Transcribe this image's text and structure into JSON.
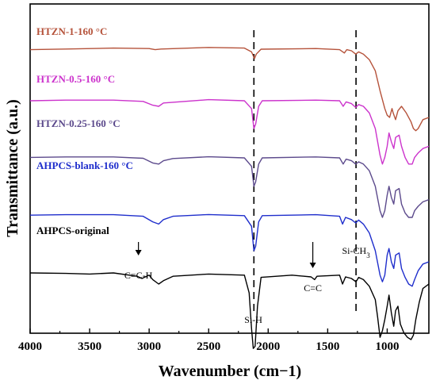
{
  "chart_data": {
    "type": "line",
    "xlabel": "Wavenumber (cm−1)",
    "ylabel": "Transmittance (a.u.)",
    "xlim": [
      4000,
      650
    ],
    "x_reversed": true,
    "x_ticks": [
      4000,
      3500,
      3000,
      2500,
      2000,
      1500,
      1000
    ],
    "grid": false,
    "legend_placement": "inline-left",
    "series": [
      {
        "name": "HTZN-1-160 °C",
        "color": "#b5523a",
        "points": [
          [
            4000,
            0.955
          ],
          [
            3700,
            0.958
          ],
          [
            3300,
            0.962
          ],
          [
            3000,
            0.96
          ],
          [
            2950,
            0.955
          ],
          [
            2900,
            0.958
          ],
          [
            2500,
            0.965
          ],
          [
            2200,
            0.962
          ],
          [
            2140,
            0.945
          ],
          [
            2115,
            0.915
          ],
          [
            2100,
            0.935
          ],
          [
            2060,
            0.957
          ],
          [
            1600,
            0.96
          ],
          [
            1400,
            0.955
          ],
          [
            1360,
            0.94
          ],
          [
            1340,
            0.955
          ],
          [
            1300,
            0.95
          ],
          [
            1265,
            0.935
          ],
          [
            1240,
            0.945
          ],
          [
            1200,
            0.935
          ],
          [
            1150,
            0.91
          ],
          [
            1100,
            0.86
          ],
          [
            1060,
            0.77
          ],
          [
            1020,
            0.69
          ],
          [
            1000,
            0.66
          ],
          [
            980,
            0.65
          ],
          [
            960,
            0.69
          ],
          [
            950,
            0.67
          ],
          [
            930,
            0.64
          ],
          [
            910,
            0.68
          ],
          [
            880,
            0.7
          ],
          [
            840,
            0.67
          ],
          [
            800,
            0.63
          ],
          [
            780,
            0.6
          ],
          [
            760,
            0.59
          ],
          [
            740,
            0.6
          ],
          [
            700,
            0.64
          ],
          [
            650,
            0.65
          ]
        ]
      },
      {
        "name": "HTZN-0.5-160 °C",
        "color": "#cc33cc",
        "points": [
          [
            4000,
            0.725
          ],
          [
            3700,
            0.728
          ],
          [
            3300,
            0.728
          ],
          [
            3050,
            0.722
          ],
          [
            2970,
            0.705
          ],
          [
            2920,
            0.7
          ],
          [
            2880,
            0.715
          ],
          [
            2500,
            0.73
          ],
          [
            2200,
            0.725
          ],
          [
            2140,
            0.69
          ],
          [
            2120,
            0.6
          ],
          [
            2105,
            0.62
          ],
          [
            2080,
            0.7
          ],
          [
            2050,
            0.725
          ],
          [
            1600,
            0.728
          ],
          [
            1400,
            0.725
          ],
          [
            1370,
            0.7
          ],
          [
            1345,
            0.72
          ],
          [
            1300,
            0.712
          ],
          [
            1265,
            0.695
          ],
          [
            1240,
            0.708
          ],
          [
            1200,
            0.7
          ],
          [
            1150,
            0.67
          ],
          [
            1100,
            0.6
          ],
          [
            1060,
            0.48
          ],
          [
            1040,
            0.44
          ],
          [
            1020,
            0.47
          ],
          [
            1000,
            0.52
          ],
          [
            985,
            0.58
          ],
          [
            965,
            0.54
          ],
          [
            945,
            0.51
          ],
          [
            930,
            0.56
          ],
          [
            900,
            0.57
          ],
          [
            880,
            0.52
          ],
          [
            850,
            0.47
          ],
          [
            820,
            0.44
          ],
          [
            790,
            0.44
          ],
          [
            770,
            0.47
          ],
          [
            740,
            0.49
          ],
          [
            700,
            0.51
          ],
          [
            650,
            0.52
          ]
        ]
      },
      {
        "name": "HTZN-0.25-160 °C",
        "color": "#5c4a8c",
        "points": [
          [
            4000,
            0.47
          ],
          [
            3700,
            0.472
          ],
          [
            3300,
            0.472
          ],
          [
            3050,
            0.466
          ],
          [
            2970,
            0.445
          ],
          [
            2920,
            0.44
          ],
          [
            2880,
            0.455
          ],
          [
            2800,
            0.465
          ],
          [
            2500,
            0.473
          ],
          [
            2200,
            0.468
          ],
          [
            2140,
            0.43
          ],
          [
            2120,
            0.34
          ],
          [
            2105,
            0.36
          ],
          [
            2080,
            0.44
          ],
          [
            2050,
            0.468
          ],
          [
            1600,
            0.472
          ],
          [
            1400,
            0.468
          ],
          [
            1370,
            0.44
          ],
          [
            1345,
            0.462
          ],
          [
            1300,
            0.455
          ],
          [
            1265,
            0.44
          ],
          [
            1240,
            0.45
          ],
          [
            1200,
            0.44
          ],
          [
            1150,
            0.41
          ],
          [
            1100,
            0.34
          ],
          [
            1060,
            0.23
          ],
          [
            1040,
            0.2
          ],
          [
            1020,
            0.23
          ],
          [
            1000,
            0.3
          ],
          [
            985,
            0.34
          ],
          [
            965,
            0.29
          ],
          [
            945,
            0.26
          ],
          [
            930,
            0.32
          ],
          [
            900,
            0.33
          ],
          [
            880,
            0.26
          ],
          [
            850,
            0.22
          ],
          [
            820,
            0.2
          ],
          [
            790,
            0.2
          ],
          [
            770,
            0.23
          ],
          [
            740,
            0.25
          ],
          [
            700,
            0.27
          ],
          [
            650,
            0.28
          ]
        ]
      },
      {
        "name": "AHPCS-blank-160 °C",
        "color": "#1f2ecc",
        "points": [
          [
            4000,
            0.21
          ],
          [
            3700,
            0.212
          ],
          [
            3300,
            0.212
          ],
          [
            3050,
            0.205
          ],
          [
            2970,
            0.18
          ],
          [
            2920,
            0.17
          ],
          [
            2880,
            0.19
          ],
          [
            2800,
            0.205
          ],
          [
            2500,
            0.213
          ],
          [
            2200,
            0.208
          ],
          [
            2140,
            0.16
          ],
          [
            2120,
            0.05
          ],
          [
            2105,
            0.07
          ],
          [
            2080,
            0.18
          ],
          [
            2050,
            0.208
          ],
          [
            1600,
            0.212
          ],
          [
            1400,
            0.205
          ],
          [
            1375,
            0.17
          ],
          [
            1350,
            0.2
          ],
          [
            1300,
            0.19
          ],
          [
            1265,
            0.175
          ],
          [
            1240,
            0.188
          ],
          [
            1200,
            0.17
          ],
          [
            1150,
            0.13
          ],
          [
            1100,
            0.05
          ],
          [
            1060,
            -0.06
          ],
          [
            1040,
            -0.09
          ],
          [
            1020,
            -0.06
          ],
          [
            1000,
            0.03
          ],
          [
            985,
            0.06
          ],
          [
            965,
            0.0
          ],
          [
            945,
            -0.03
          ],
          [
            930,
            0.03
          ],
          [
            900,
            0.04
          ],
          [
            880,
            -0.03
          ],
          [
            850,
            -0.07
          ],
          [
            820,
            -0.1
          ],
          [
            790,
            -0.11
          ],
          [
            770,
            -0.08
          ],
          [
            740,
            -0.04
          ],
          [
            700,
            -0.01
          ],
          [
            650,
            0.0
          ]
        ]
      },
      {
        "name": "AHPCS-original",
        "color": "#000000",
        "points": [
          [
            4000,
            -0.05
          ],
          [
            3700,
            -0.052
          ],
          [
            3500,
            -0.055
          ],
          [
            3300,
            -0.05
          ],
          [
            3100,
            -0.065
          ],
          [
            3060,
            -0.075
          ],
          [
            3000,
            -0.06
          ],
          [
            2970,
            -0.08
          ],
          [
            2920,
            -0.1
          ],
          [
            2880,
            -0.085
          ],
          [
            2800,
            -0.065
          ],
          [
            2500,
            -0.055
          ],
          [
            2200,
            -0.06
          ],
          [
            2160,
            -0.14
          ],
          [
            2140,
            -0.3
          ],
          [
            2125,
            -0.39
          ],
          [
            2110,
            -0.38
          ],
          [
            2090,
            -0.2
          ],
          [
            2060,
            -0.07
          ],
          [
            1800,
            -0.06
          ],
          [
            1640,
            -0.068
          ],
          [
            1610,
            -0.08
          ],
          [
            1590,
            -0.065
          ],
          [
            1400,
            -0.06
          ],
          [
            1375,
            -0.1
          ],
          [
            1350,
            -0.068
          ],
          [
            1300,
            -0.075
          ],
          [
            1262,
            -0.09
          ],
          [
            1240,
            -0.07
          ],
          [
            1200,
            -0.08
          ],
          [
            1150,
            -0.11
          ],
          [
            1100,
            -0.17
          ],
          [
            1080,
            -0.25
          ],
          [
            1060,
            -0.34
          ],
          [
            1040,
            -0.31
          ],
          [
            1020,
            -0.26
          ],
          [
            1000,
            -0.2
          ],
          [
            985,
            -0.15
          ],
          [
            965,
            -0.23
          ],
          [
            945,
            -0.29
          ],
          [
            930,
            -0.22
          ],
          [
            910,
            -0.2
          ],
          [
            890,
            -0.28
          ],
          [
            860,
            -0.32
          ],
          [
            830,
            -0.34
          ],
          [
            800,
            -0.35
          ],
          [
            780,
            -0.33
          ],
          [
            760,
            -0.26
          ],
          [
            730,
            -0.18
          ],
          [
            700,
            -0.12
          ],
          [
            650,
            -0.1
          ]
        ]
      }
    ],
    "reference_lines": [
      {
        "x": 2120,
        "style": "dashed"
      },
      {
        "x": 1262,
        "style": "dashed"
      }
    ],
    "annotations": [
      {
        "text": "C=C-H",
        "x": 3090,
        "arrow": true
      },
      {
        "text": "Si-H",
        "x": 2125,
        "arrow": false
      },
      {
        "text": "C=C",
        "x": 1625,
        "arrow": true
      },
      {
        "text": "Si-CH3",
        "x": 1262,
        "arrow": false
      }
    ]
  }
}
